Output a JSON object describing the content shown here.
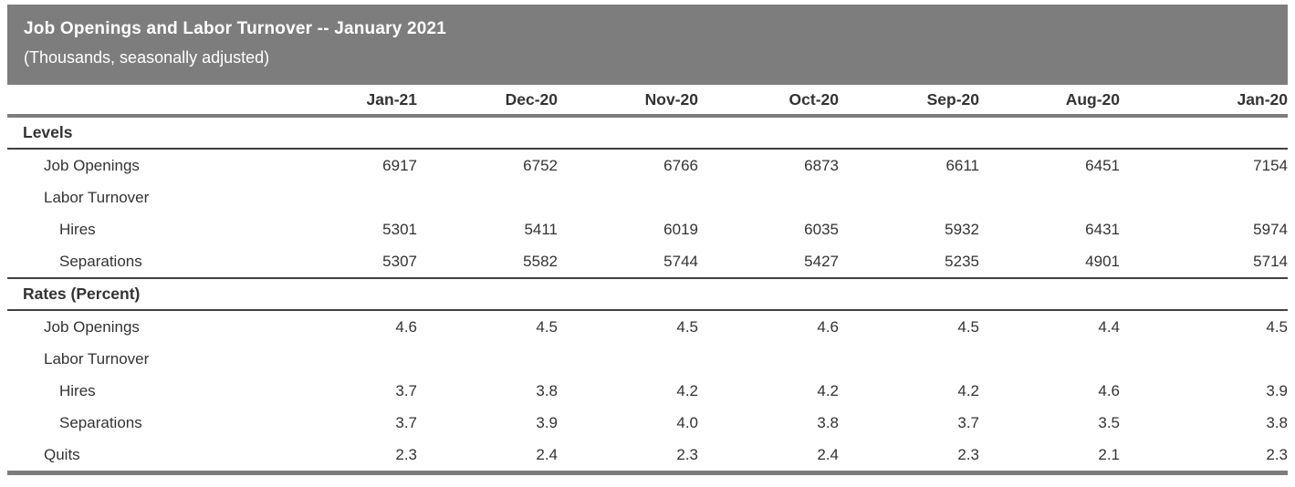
{
  "header": {
    "title": "Job Openings and Labor Turnover -- January 2021",
    "subtitle": "(Thousands, seasonally adjusted)"
  },
  "colors": {
    "header_bg": "#7d7d7d",
    "text": "#333333",
    "rule_thick_gray": "#7d7d7d",
    "rule_thin_dark": "#404040"
  },
  "chart_data": {
    "type": "table",
    "title": "Job Openings and Labor Turnover -- January 2021",
    "subtitle": "(Thousands, seasonally adjusted)",
    "units": "Thousands, seasonally adjusted; rates in percent",
    "columns": [
      "Jan-21",
      "Dec-20",
      "Nov-20",
      "Oct-20",
      "Sep-20",
      "Aug-20",
      "Jan-20"
    ],
    "sections": [
      {
        "heading": "Levels",
        "rows": [
          {
            "label": "Job Openings",
            "indent": 1,
            "values": [
              "6917",
              "6752",
              "6766",
              "6873",
              "6611",
              "6451",
              "7154"
            ]
          },
          {
            "label": "Labor Turnover",
            "indent": 1,
            "values": [
              "",
              "",
              "",
              "",
              "",
              "",
              ""
            ]
          },
          {
            "label": "Hires",
            "indent": 2,
            "values": [
              "5301",
              "5411",
              "6019",
              "6035",
              "5932",
              "6431",
              "5974"
            ]
          },
          {
            "label": "Separations",
            "indent": 2,
            "values": [
              "5307",
              "5582",
              "5744",
              "5427",
              "5235",
              "4901",
              "5714"
            ]
          }
        ]
      },
      {
        "heading": "Rates (Percent)",
        "rows": [
          {
            "label": "Job Openings",
            "indent": 1,
            "values": [
              "4.6",
              "4.5",
              "4.5",
              "4.6",
              "4.5",
              "4.4",
              "4.5"
            ]
          },
          {
            "label": "Labor Turnover",
            "indent": 1,
            "values": [
              "",
              "",
              "",
              "",
              "",
              "",
              ""
            ]
          },
          {
            "label": "Hires",
            "indent": 2,
            "values": [
              "3.7",
              "3.8",
              "4.2",
              "4.2",
              "4.2",
              "4.6",
              "3.9"
            ]
          },
          {
            "label": "Separations",
            "indent": 2,
            "values": [
              "3.7",
              "3.9",
              "4.0",
              "3.8",
              "3.7",
              "3.5",
              "3.8"
            ]
          },
          {
            "label": "Quits",
            "indent": 1,
            "values": [
              "2.3",
              "2.4",
              "2.3",
              "2.4",
              "2.3",
              "2.1",
              "2.3"
            ]
          }
        ]
      }
    ]
  }
}
